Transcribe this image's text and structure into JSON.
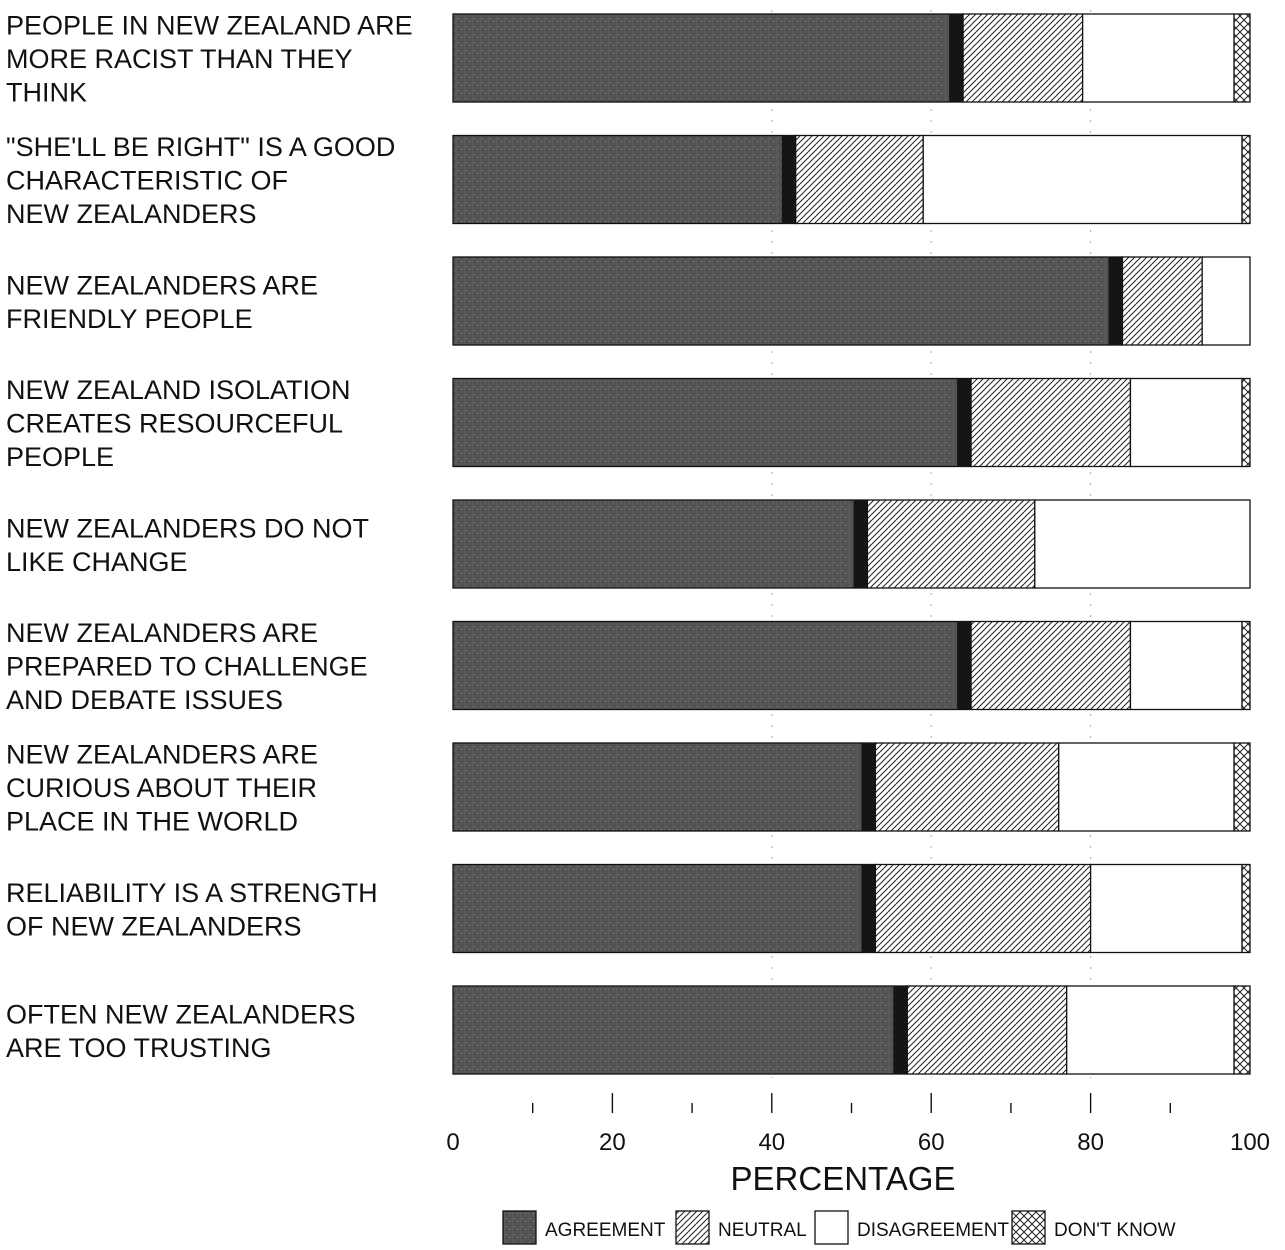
{
  "chart_data": {
    "type": "bar",
    "orientation": "horizontal",
    "stacked": true,
    "categories": [
      [
        "PEOPLE IN NEW ZEALAND ARE",
        "MORE RACIST THAN THEY",
        "THINK"
      ],
      [
        "\"SHE'LL BE RIGHT\" IS A GOOD",
        "CHARACTERISTIC OF",
        "NEW ZEALANDERS"
      ],
      [
        "NEW ZEALANDERS ARE",
        "FRIENDLY PEOPLE"
      ],
      [
        "NEW ZEALAND ISOLATION",
        "CREATES RESOURCEFUL",
        "PEOPLE"
      ],
      [
        "NEW ZEALANDERS DO NOT",
        "LIKE CHANGE"
      ],
      [
        "NEW ZEALANDERS ARE",
        "PREPARED TO CHALLENGE",
        "AND DEBATE ISSUES"
      ],
      [
        "NEW ZEALANDERS ARE",
        "CURIOUS ABOUT THEIR",
        "PLACE IN THE WORLD"
      ],
      [
        "RELIABILITY IS A STRENGTH",
        "OF NEW ZEALANDERS"
      ],
      [
        "OFTEN NEW ZEALANDERS",
        "ARE TOO TRUSTING"
      ]
    ],
    "series": [
      {
        "name": "AGREEMENT",
        "values": [
          64,
          43,
          84,
          65,
          52,
          65,
          53,
          53,
          57
        ]
      },
      {
        "name": "NEUTRAL",
        "values": [
          15,
          16,
          10,
          20,
          21,
          20,
          23,
          27,
          20
        ]
      },
      {
        "name": "DISAGREEMENT",
        "values": [
          19,
          40,
          6,
          14,
          27,
          14,
          22,
          19,
          21
        ]
      },
      {
        "name": "DON'T KNOW",
        "values": [
          2,
          1,
          0,
          1,
          0,
          1,
          2,
          1,
          2
        ]
      }
    ],
    "xlabel": "PERCENTAGE",
    "xlim": [
      0,
      100
    ],
    "xticks": [
      0,
      20,
      40,
      60,
      80,
      100
    ],
    "legend_position": "bottom",
    "grid": false
  }
}
